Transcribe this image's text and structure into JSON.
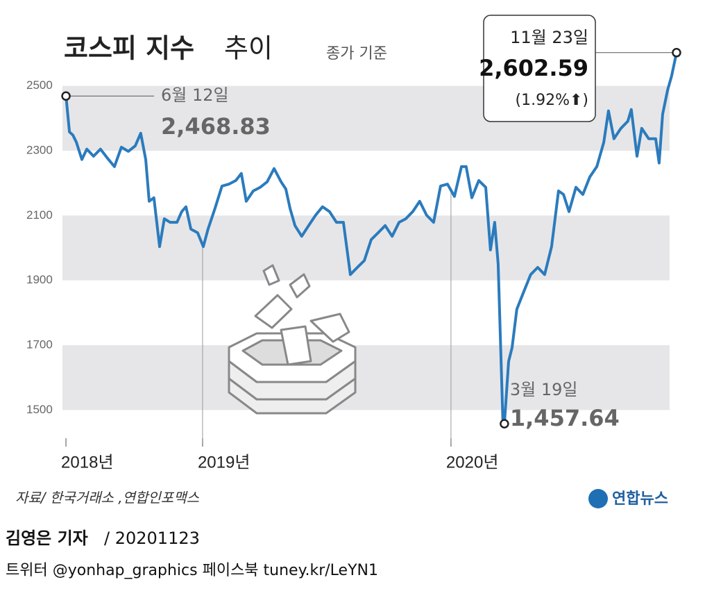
{
  "chart_data": {
    "type": "line",
    "title_main": "코스피 지수",
    "title_rest": "추이",
    "subtitle": "종가 기준",
    "source": "자료/ 한국거래소 ,연합인포맥스",
    "logo": "연합뉴스",
    "xlim": [
      2018.38,
      2020.95
    ],
    "ylim": [
      1400,
      2600
    ],
    "xticks": [
      {
        "value": 2018.45,
        "label": "2018년"
      },
      {
        "value": 2019,
        "label": "2019년"
      },
      {
        "value": 2020,
        "label": "2020년"
      }
    ],
    "yticks": [
      2500,
      2300,
      2100,
      1900,
      1700,
      1500
    ],
    "grid_bands": true,
    "series": [
      {
        "name": "코스피 지수",
        "color": "#2b7bbd",
        "x": [
          2018.45,
          2018.464,
          2018.478,
          2018.492,
          2018.514,
          2018.534,
          2018.561,
          2018.589,
          2018.617,
          2018.645,
          2018.673,
          2018.701,
          2018.729,
          2018.751,
          2018.771,
          2018.785,
          2018.804,
          2018.827,
          2018.846,
          2018.869,
          2018.897,
          2018.916,
          2018.933,
          2018.953,
          2018.98,
          2019.003,
          2019.022,
          2019.05,
          2019.078,
          2019.106,
          2019.134,
          2019.156,
          2019.176,
          2019.204,
          2019.232,
          2019.26,
          2019.288,
          2019.316,
          2019.335,
          2019.352,
          2019.372,
          2019.399,
          2019.427,
          2019.455,
          2019.483,
          2019.511,
          2019.539,
          2019.567,
          2019.595,
          2019.623,
          2019.651,
          2019.679,
          2019.707,
          2019.735,
          2019.763,
          2019.791,
          2019.818,
          2019.846,
          2019.874,
          2019.902,
          2019.93,
          2019.958,
          2019.986,
          2020.014,
          2020.042,
          2020.061,
          2020.084,
          2020.112,
          2020.14,
          2020.159,
          2020.176,
          2020.19,
          2020.209,
          2020.215,
          2020.232,
          2020.246,
          2020.265,
          2020.293,
          2020.321,
          2020.349,
          2020.377,
          2020.405,
          2020.433,
          2020.453,
          2020.475,
          2020.503,
          2020.531,
          2020.559,
          2020.587,
          2020.615,
          2020.634,
          2020.656,
          2020.684,
          2020.712,
          2020.726,
          2020.749,
          2020.768,
          2020.796,
          2020.824,
          2020.838,
          2020.852,
          2020.872,
          2020.888,
          2020.908
        ],
        "values": [
          2468.83,
          2358,
          2348,
          2326,
          2273,
          2305,
          2283,
          2305,
          2277,
          2251,
          2311,
          2298,
          2315,
          2354,
          2273,
          2144,
          2155,
          2004,
          2090,
          2079,
          2079,
          2112,
          2127,
          2058,
          2047,
          2004,
          2058,
          2122,
          2191,
          2197,
          2208,
          2230,
          2144,
          2176,
          2187,
          2204,
          2245,
          2204,
          2182,
          2122,
          2069,
          2036,
          2069,
          2101,
          2127,
          2112,
          2079,
          2079,
          1918,
          1940,
          1961,
          2026,
          2047,
          2069,
          2036,
          2079,
          2090,
          2112,
          2144,
          2101,
          2079,
          2191,
          2197,
          2159,
          2251,
          2251,
          2155,
          2208,
          2187,
          1994,
          2079,
          1951,
          1468,
          1457.64,
          1650,
          1693,
          1811,
          1865,
          1918,
          1940,
          1918,
          2004,
          2176,
          2165,
          2112,
          2187,
          2165,
          2219,
          2251,
          2326,
          2423,
          2337,
          2369,
          2391,
          2427,
          2283,
          2369,
          2337,
          2337,
          2262,
          2412,
          2487,
          2530,
          2602.59
        ],
        "value_labels": [
          "2,468.83",
          null,
          null,
          null,
          null,
          null,
          null,
          null,
          null,
          null,
          null,
          null,
          null,
          null,
          null,
          null,
          null,
          null,
          null,
          null,
          null,
          null,
          null,
          null,
          null,
          null,
          null,
          null,
          null,
          null,
          null,
          null,
          null,
          null,
          null,
          null,
          null,
          null,
          null,
          null,
          null,
          null,
          null,
          null,
          null,
          null,
          null,
          null,
          null,
          null,
          null,
          null,
          null,
          null,
          null,
          null,
          null,
          null,
          null,
          null,
          null,
          null,
          null,
          null,
          null,
          null,
          null,
          null,
          null,
          null,
          null,
          null,
          null,
          "1,457.64",
          null,
          null,
          null,
          null,
          null,
          null,
          null,
          null,
          null,
          null,
          null,
          null,
          null,
          null,
          null,
          null,
          null,
          null,
          null,
          null,
          null,
          null,
          null,
          null,
          null,
          null,
          null,
          null,
          null,
          "2,602.59"
        ],
        "date_labels": [
          "6월 12일",
          null,
          null,
          null,
          null,
          null,
          null,
          null,
          null,
          null,
          null,
          null,
          null,
          null,
          null,
          null,
          null,
          null,
          null,
          null,
          null,
          null,
          null,
          null,
          null,
          null,
          null,
          null,
          null,
          null,
          null,
          null,
          null,
          null,
          null,
          null,
          null,
          null,
          null,
          null,
          null,
          null,
          null,
          null,
          null,
          null,
          null,
          null,
          null,
          null,
          null,
          null,
          null,
          null,
          null,
          null,
          null,
          null,
          null,
          null,
          null,
          null,
          null,
          null,
          null,
          null,
          null,
          null,
          null,
          null,
          null,
          null,
          null,
          "3월 19일",
          null,
          null,
          null,
          null,
          null,
          null,
          null,
          null,
          null,
          null,
          null,
          null,
          null,
          null,
          null,
          null,
          null,
          null,
          null,
          null,
          null,
          null,
          null,
          null,
          null,
          null,
          null,
          null,
          null,
          "11월 23일"
        ]
      }
    ],
    "last_change": "(1.92%⬆)"
  },
  "footer": {
    "reporter": "김영은 기자",
    "date": "/ 20201123",
    "social": "트위터 @yonhap_graphics  페이스북 tuney.kr/LeYN1"
  }
}
